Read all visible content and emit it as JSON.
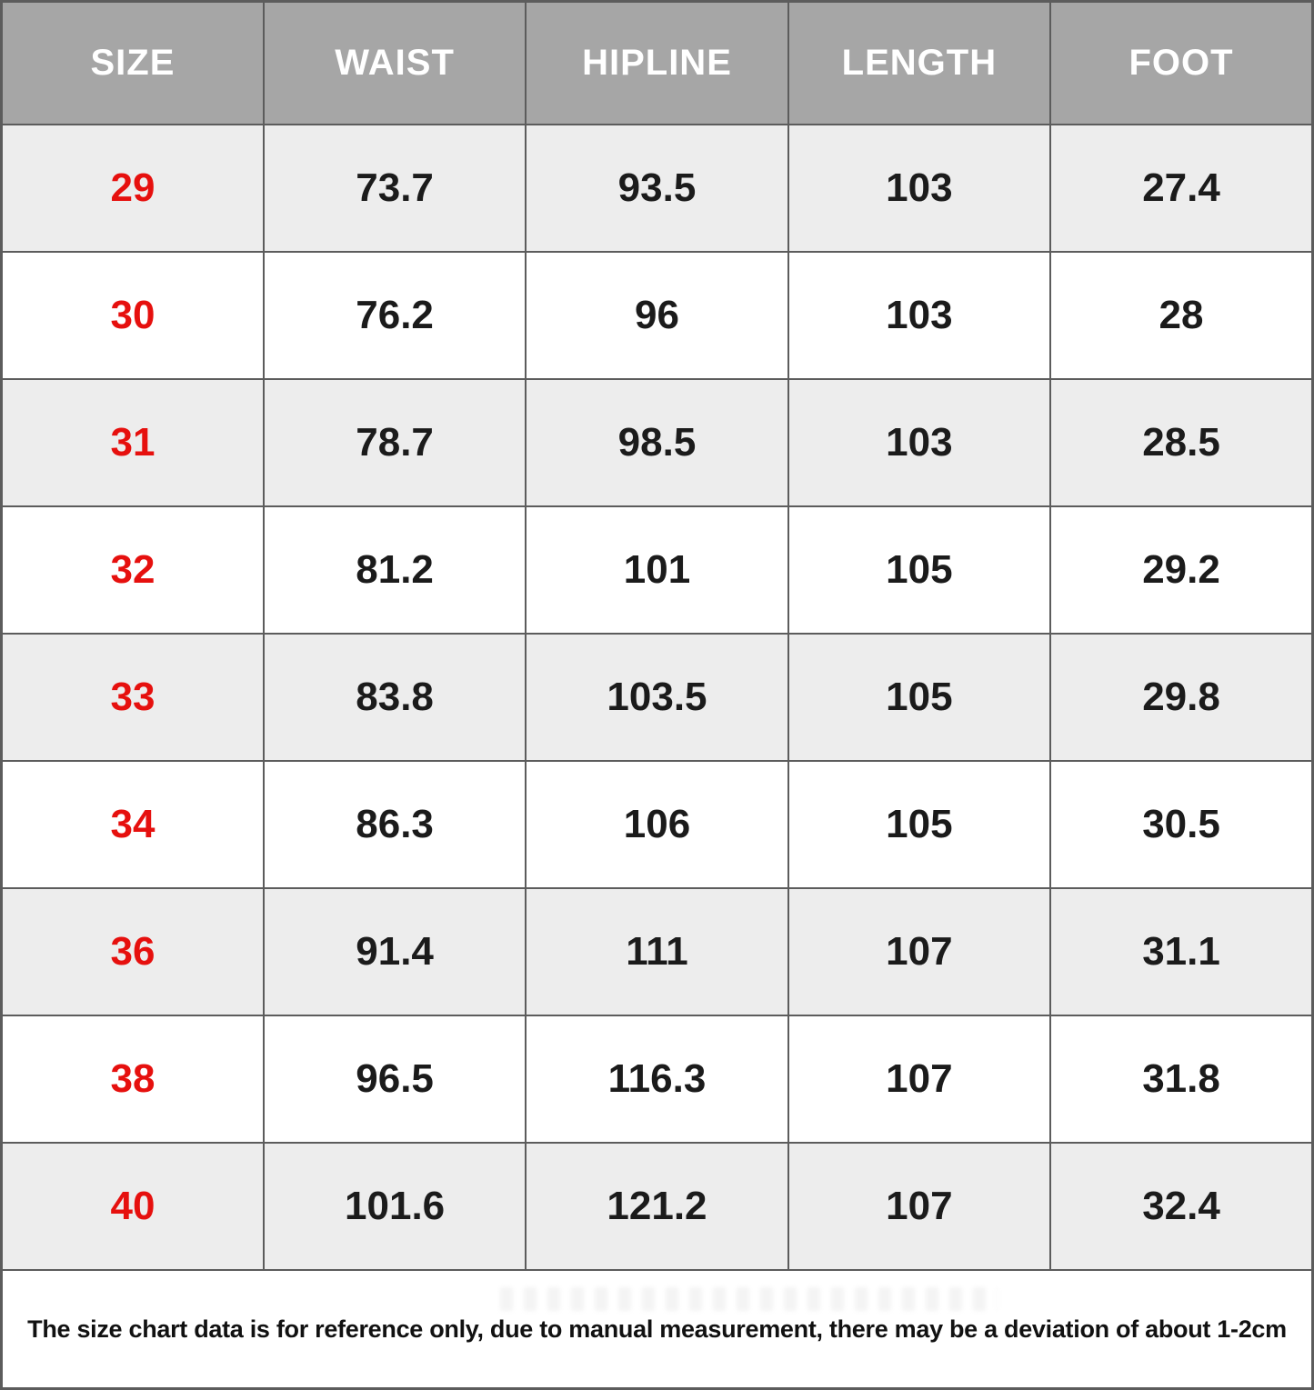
{
  "colors": {
    "header_bg": "#a6a6a6",
    "header_text": "#ffffff",
    "row_bg": "#ffffff",
    "row_alt_bg": "#ededed",
    "border": "#5c5c5c",
    "size_text": "#e6100e",
    "value_text": "#1b1b1b",
    "footer_bg": "#ffffff",
    "footer_text": "#111111"
  },
  "chart_data": {
    "type": "table",
    "title": "",
    "columns": [
      "SIZE",
      "WAIST",
      "HIPLINE",
      "LENGTH",
      "FOOT"
    ],
    "rows": [
      [
        "29",
        "73.7",
        "93.5",
        "103",
        "27.4"
      ],
      [
        "30",
        "76.2",
        "96",
        "103",
        "28"
      ],
      [
        "31",
        "78.7",
        "98.5",
        "103",
        "28.5"
      ],
      [
        "32",
        "81.2",
        "101",
        "105",
        "29.2"
      ],
      [
        "33",
        "83.8",
        "103.5",
        "105",
        "29.8"
      ],
      [
        "34",
        "86.3",
        "106",
        "105",
        "30.5"
      ],
      [
        "36",
        "91.4",
        "111",
        "107",
        "31.1"
      ],
      [
        "38",
        "96.5",
        "116.3",
        "107",
        "31.8"
      ],
      [
        "40",
        "101.6",
        "121.2",
        "107",
        "32.4"
      ]
    ],
    "layout": {
      "grid": true,
      "alternating_row_shading": true,
      "size_column_color": "#e6100e"
    }
  },
  "footer": {
    "note": "The size chart data is for reference only, due to manual measurement, there may be a deviation of about 1-2cm"
  }
}
